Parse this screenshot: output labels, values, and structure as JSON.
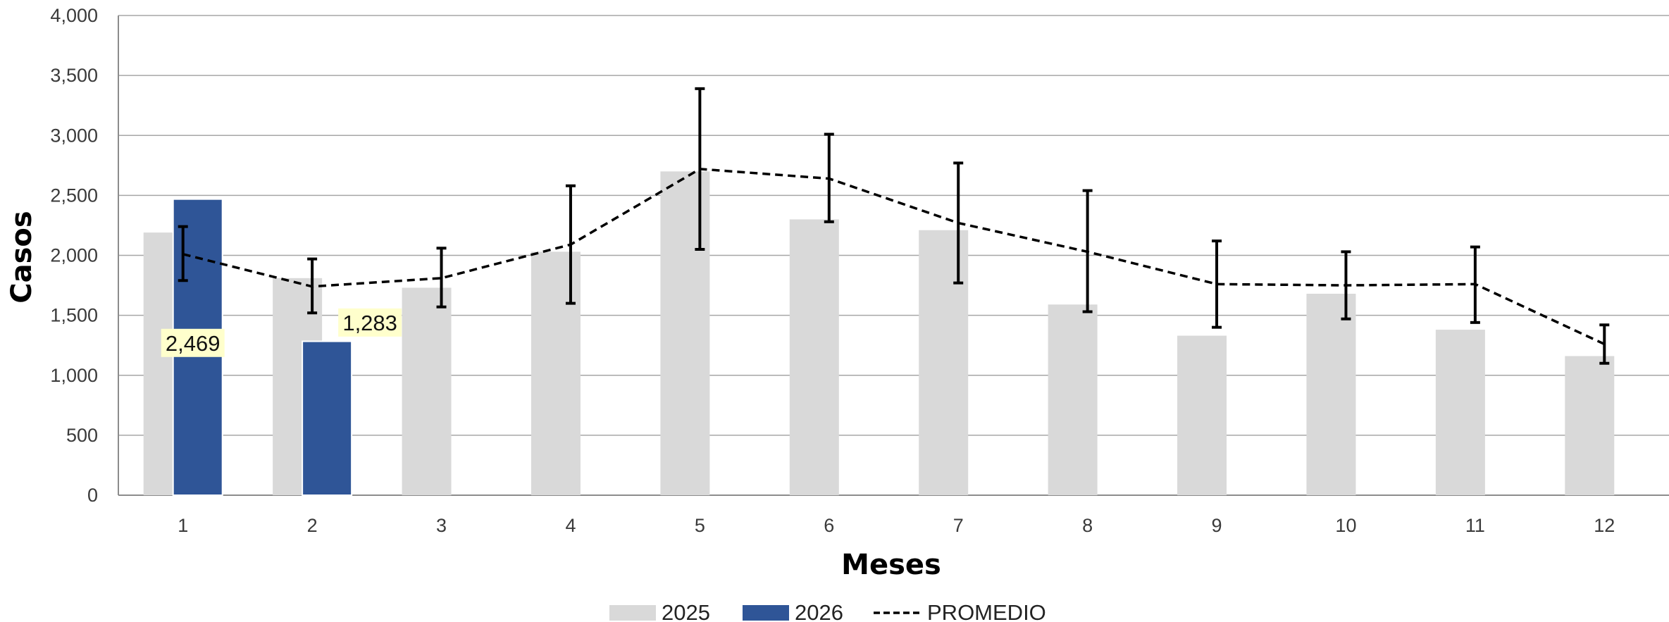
{
  "chart_data": {
    "type": "bar",
    "xlabel": "Meses",
    "ylabel": "Casos",
    "ylim": [
      0,
      4000
    ],
    "yticks": [
      0,
      500,
      1000,
      1500,
      2000,
      2500,
      3000,
      3500,
      4000
    ],
    "ytick_labels": [
      "0",
      "500",
      "1,000",
      "1,500",
      "2,000",
      "2,500",
      "3,000",
      "3,500",
      "4,000"
    ],
    "categories": [
      "1",
      "2",
      "3",
      "4",
      "5",
      "6",
      "7",
      "8",
      "9",
      "10",
      "11",
      "12"
    ],
    "grid": "horizontal",
    "legend_position": "bottom-center",
    "series": [
      {
        "name": "2025",
        "type": "bar",
        "color": "#d9d9d9",
        "values": [
          2190,
          1810,
          1730,
          2030,
          2700,
          2300,
          2210,
          1590,
          1330,
          1680,
          1380,
          1160
        ]
      },
      {
        "name": "2026",
        "type": "bar",
        "color": "#2f5597",
        "values": [
          2469,
          1283,
          null,
          null,
          null,
          null,
          null,
          null,
          null,
          null,
          null,
          null
        ],
        "data_labels": [
          "2,469",
          "1,283"
        ]
      },
      {
        "name": "PROMEDIO",
        "type": "line",
        "style": "dashed",
        "color": "#000000",
        "values": [
          2010,
          1740,
          1810,
          2090,
          2720,
          2640,
          2270,
          2030,
          1760,
          1750,
          1760,
          1260
        ],
        "error_low": [
          1790,
          1520,
          1570,
          1600,
          2050,
          2280,
          1770,
          1530,
          1400,
          1470,
          1440,
          1100
        ],
        "error_high": [
          2240,
          1970,
          2060,
          2580,
          3390,
          3010,
          2770,
          2540,
          2120,
          2030,
          2070,
          1420
        ]
      }
    ]
  }
}
